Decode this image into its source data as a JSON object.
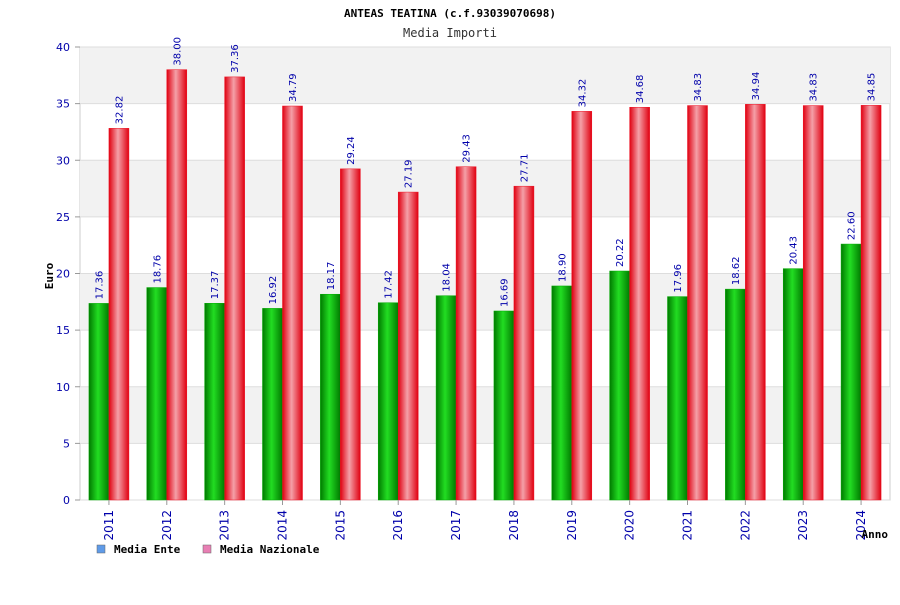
{
  "chart_data": {
    "type": "bar",
    "title": "ANTEAS TEATINA (c.f.93039070698)",
    "subtitle": "Media Importi",
    "xlabel": "Anno",
    "ylabel": "Euro",
    "ylim": [
      0,
      40
    ],
    "yticks": [
      "0",
      "5",
      "10",
      "15",
      "20",
      "25",
      "30",
      "35",
      "40"
    ],
    "grid": true,
    "legend_position": "bottom-left",
    "categories": [
      "2011",
      "2012",
      "2013",
      "2014",
      "2015",
      "2016",
      "2017",
      "2018",
      "2019",
      "2020",
      "2021",
      "2022",
      "2023",
      "2024"
    ],
    "series": [
      {
        "name": "Media Ente",
        "color": "#00aa00",
        "legend_color": "#5f9be8",
        "values": [
          17.36,
          18.76,
          17.37,
          16.92,
          18.17,
          17.42,
          18.04,
          16.69,
          18.9,
          20.22,
          17.96,
          18.62,
          20.43,
          22.6
        ],
        "labels": [
          "17.36",
          "18.76",
          "17.37",
          "16.92",
          "18.17",
          "17.42",
          "18.04",
          "16.69",
          "18.90",
          "20.22",
          "17.96",
          "18.62",
          "20.43",
          "22.60"
        ]
      },
      {
        "name": "Media Nazionale",
        "color": "#ee1122",
        "legend_color": "#e87fb4",
        "values": [
          32.82,
          38.0,
          37.36,
          34.79,
          29.24,
          27.19,
          29.43,
          27.71,
          34.32,
          34.68,
          34.83,
          34.94,
          34.83,
          34.85
        ],
        "labels": [
          "32.82",
          "38.00",
          "37.36",
          "34.79",
          "29.24",
          "27.19",
          "29.43",
          "27.71",
          "34.32",
          "34.68",
          "34.83",
          "34.94",
          "34.83",
          "34.85"
        ]
      }
    ]
  }
}
